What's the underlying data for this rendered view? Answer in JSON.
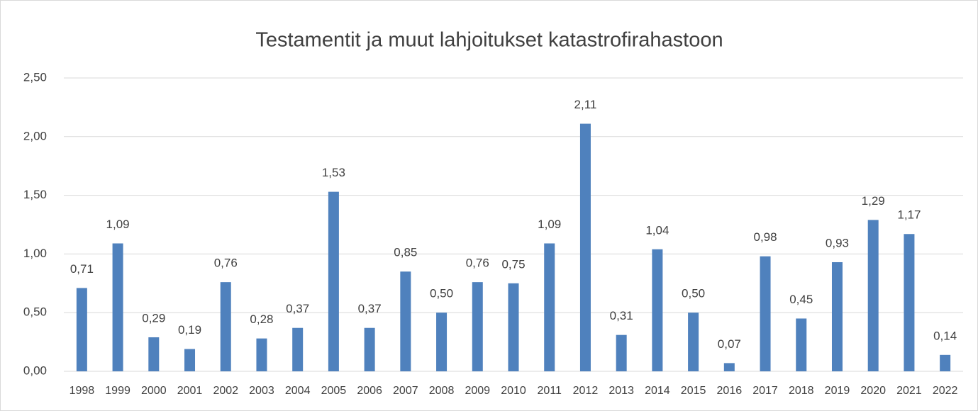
{
  "chart_data": {
    "type": "bar",
    "title": "Testamentit ja muut lahjoitukset katastrofirahastoon",
    "categories": [
      "1998",
      "1999",
      "2000",
      "2001",
      "2002",
      "2003",
      "2004",
      "2005",
      "2006",
      "2007",
      "2008",
      "2009",
      "2010",
      "2011",
      "2012",
      "2013",
      "2014",
      "2015",
      "2016",
      "2017",
      "2018",
      "2019",
      "2020",
      "2021",
      "2022"
    ],
    "values": [
      0.71,
      1.09,
      0.29,
      0.19,
      0.76,
      0.28,
      0.37,
      1.53,
      0.37,
      0.85,
      0.5,
      0.76,
      0.75,
      1.09,
      2.11,
      0.31,
      1.04,
      0.5,
      0.07,
      0.98,
      0.45,
      0.93,
      1.29,
      1.17,
      0.14
    ],
    "value_labels": [
      "0,71",
      "1,09",
      "0,29",
      "0,19",
      "0,76",
      "0,28",
      "0,37",
      "1,53",
      "0,37",
      "0,85",
      "0,50",
      "0,76",
      "0,75",
      "1,09",
      "2,11",
      "0,31",
      "1,04",
      "0,50",
      "0,07",
      "0,98",
      "0,45",
      "0,93",
      "1,29",
      "1,17",
      "0,14"
    ],
    "color": "#4f81bd",
    "ylim": [
      0,
      2.5
    ],
    "yticks": [
      {
        "value": 0,
        "label": "0,00"
      },
      {
        "value": 0.5,
        "label": "0,50"
      },
      {
        "value": 1,
        "label": "1,00"
      },
      {
        "value": 1.5,
        "label": "1,50"
      },
      {
        "value": 2,
        "label": "2,00"
      },
      {
        "value": 2.5,
        "label": "2,50"
      }
    ],
    "grid": true
  }
}
